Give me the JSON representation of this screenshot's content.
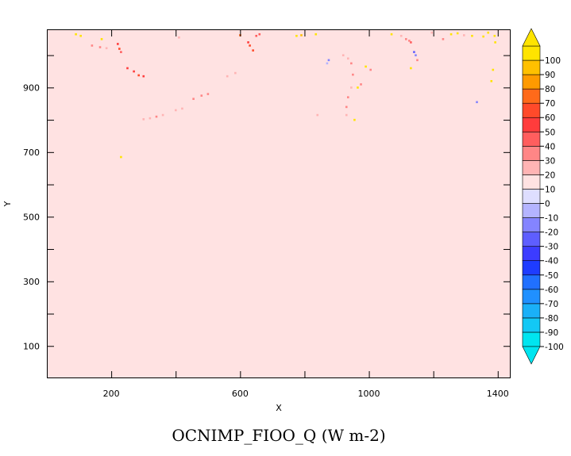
{
  "chart_data": {
    "type": "heatmap",
    "title": "OCNIMP_FIOO_Q (W m-2)",
    "xlabel": "X",
    "ylabel": "Y",
    "xlim": [
      0,
      1440
    ],
    "ylim": [
      0,
      1080
    ],
    "x_ticks": [
      200,
      600,
      1000,
      1400
    ],
    "x_minor_ticks": [
      400,
      800,
      1200
    ],
    "y_ticks": [
      100,
      300,
      500,
      700,
      900
    ],
    "y_minor_ticks": [
      200,
      400,
      600,
      800,
      1000
    ],
    "field_value": 0,
    "colorbar": {
      "levels": [
        -100,
        -90,
        -80,
        -70,
        -60,
        -50,
        -40,
        -30,
        -20,
        -10,
        0,
        10,
        20,
        30,
        40,
        50,
        60,
        70,
        80,
        90,
        100
      ],
      "colors": [
        "#00e5f0",
        "#13c8f5",
        "#1ab0f8",
        "#2090ff",
        "#2070ff",
        "#1e3cff",
        "#3c3cff",
        "#5e5eff",
        "#8484ff",
        "#b4b4ff",
        "#dedeff",
        "#ffe2e2",
        "#ffb4b4",
        "#ff8686",
        "#ff5e5e",
        "#ff3c3c",
        "#ff4a2a",
        "#ff6a1a",
        "#ff9a00",
        "#ffc000",
        "#ffe400"
      ],
      "under_color": "#00e5f0",
      "over_color": "#ffe400"
    },
    "features": [
      {
        "x": 90,
        "y": 1065,
        "v": 95
      },
      {
        "x": 105,
        "y": 1060,
        "v": 95
      },
      {
        "x": 170,
        "y": 1050,
        "v": 95
      },
      {
        "x": 140,
        "y": 1030,
        "v": 20
      },
      {
        "x": 165,
        "y": 1025,
        "v": 25
      },
      {
        "x": 185,
        "y": 1022,
        "v": 15
      },
      {
        "x": 220,
        "y": 1035,
        "v": 45
      },
      {
        "x": 225,
        "y": 1020,
        "v": 50
      },
      {
        "x": 230,
        "y": 1010,
        "v": 35
      },
      {
        "x": 250,
        "y": 960,
        "v": 40
      },
      {
        "x": 270,
        "y": 950,
        "v": 45
      },
      {
        "x": 285,
        "y": 938,
        "v": 50
      },
      {
        "x": 300,
        "y": 935,
        "v": 45
      },
      {
        "x": 410,
        "y": 1055,
        "v": 15
      },
      {
        "x": 600,
        "y": 1062,
        "v": 60
      },
      {
        "x": 625,
        "y": 1040,
        "v": 40
      },
      {
        "x": 630,
        "y": 1030,
        "v": 50
      },
      {
        "x": 640,
        "y": 1015,
        "v": 55
      },
      {
        "x": 650,
        "y": 1060,
        "v": 35
      },
      {
        "x": 660,
        "y": 1065,
        "v": 30
      },
      {
        "x": 585,
        "y": 945,
        "v": 15
      },
      {
        "x": 560,
        "y": 935,
        "v": 15
      },
      {
        "x": 500,
        "y": 880,
        "v": 25
      },
      {
        "x": 480,
        "y": 875,
        "v": 25
      },
      {
        "x": 455,
        "y": 865,
        "v": 20
      },
      {
        "x": 420,
        "y": 835,
        "v": 15
      },
      {
        "x": 400,
        "y": 830,
        "v": 15
      },
      {
        "x": 360,
        "y": 815,
        "v": 15
      },
      {
        "x": 340,
        "y": 810,
        "v": 20
      },
      {
        "x": 320,
        "y": 805,
        "v": 15
      },
      {
        "x": 300,
        "y": 802,
        "v": 15
      },
      {
        "x": 775,
        "y": 1060,
        "v": 95
      },
      {
        "x": 790,
        "y": 1062,
        "v": 80
      },
      {
        "x": 835,
        "y": 1065,
        "v": 95
      },
      {
        "x": 870,
        "y": 975,
        "v": -20
      },
      {
        "x": 875,
        "y": 985,
        "v": -30
      },
      {
        "x": 920,
        "y": 1000,
        "v": 15
      },
      {
        "x": 935,
        "y": 990,
        "v": 15
      },
      {
        "x": 945,
        "y": 975,
        "v": 20
      },
      {
        "x": 950,
        "y": 940,
        "v": 25
      },
      {
        "x": 945,
        "y": 900,
        "v": 15
      },
      {
        "x": 935,
        "y": 870,
        "v": 20
      },
      {
        "x": 930,
        "y": 840,
        "v": 25
      },
      {
        "x": 930,
        "y": 815,
        "v": 15
      },
      {
        "x": 955,
        "y": 800,
        "v": 95
      },
      {
        "x": 965,
        "y": 900,
        "v": 90
      },
      {
        "x": 975,
        "y": 910,
        "v": 20
      },
      {
        "x": 990,
        "y": 965,
        "v": 95
      },
      {
        "x": 1005,
        "y": 955,
        "v": 20
      },
      {
        "x": 840,
        "y": 815,
        "v": 15
      },
      {
        "x": 1070,
        "y": 1065,
        "v": 95
      },
      {
        "x": 1100,
        "y": 1060,
        "v": 15
      },
      {
        "x": 1115,
        "y": 1050,
        "v": 20
      },
      {
        "x": 1125,
        "y": 1045,
        "v": 25
      },
      {
        "x": 1130,
        "y": 1040,
        "v": 30
      },
      {
        "x": 1140,
        "y": 1010,
        "v": -40
      },
      {
        "x": 1145,
        "y": 1000,
        "v": -30
      },
      {
        "x": 1130,
        "y": 960,
        "v": 90
      },
      {
        "x": 1150,
        "y": 985,
        "v": 20
      },
      {
        "x": 1195,
        "y": 1070,
        "v": 15
      },
      {
        "x": 1230,
        "y": 1050,
        "v": 20
      },
      {
        "x": 1255,
        "y": 1065,
        "v": 95
      },
      {
        "x": 1275,
        "y": 1068,
        "v": 90
      },
      {
        "x": 1295,
        "y": 1062,
        "v": 15
      },
      {
        "x": 1320,
        "y": 1060,
        "v": 95
      },
      {
        "x": 1355,
        "y": 1058,
        "v": 90
      },
      {
        "x": 1370,
        "y": 1070,
        "v": 95
      },
      {
        "x": 1390,
        "y": 1060,
        "v": 95
      },
      {
        "x": 1392,
        "y": 1040,
        "v": 95
      },
      {
        "x": 1385,
        "y": 955,
        "v": 95
      },
      {
        "x": 1380,
        "y": 920,
        "v": 90
      },
      {
        "x": 1335,
        "y": 855,
        "v": -30
      },
      {
        "x": 230,
        "y": 685,
        "v": 90
      }
    ]
  }
}
